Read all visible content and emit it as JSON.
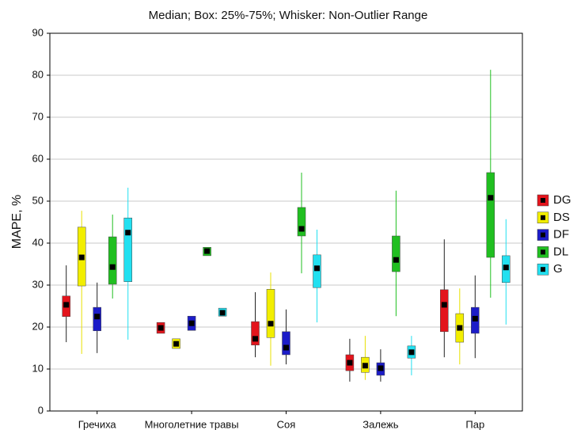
{
  "chart_data": {
    "type": "box",
    "title": "Median; Box: 25%-75%; Whisker: Non-Outlier Range",
    "y_label": "MAPE, %",
    "categories": [
      "Гречиха",
      "Многолетние травы",
      "Соя",
      "Залежь",
      "Пар"
    ],
    "ylim": [
      0,
      90
    ],
    "yticks": [
      0,
      10,
      20,
      30,
      40,
      50,
      60,
      70,
      80,
      90
    ],
    "grid": true,
    "legend": "right",
    "series": [
      {
        "name": "DG",
        "color": "#e3141c",
        "whisker_color": "#222222",
        "min": [
          16.4,
          18.5,
          12.8,
          7,
          12.8
        ],
        "q1": [
          22.5,
          18.5,
          15.7,
          9.6,
          18.9
        ],
        "median": [
          25.3,
          19.8,
          17.2,
          11.5,
          25.3
        ],
        "q3": [
          27.4,
          21.1,
          21.3,
          13.4,
          28.9
        ],
        "max": [
          34.7,
          21.1,
          28.3,
          17.2,
          40.9
        ]
      },
      {
        "name": "DS",
        "color": "#f2ee00",
        "whisker_color": "#e8e000",
        "min": [
          13.6,
          14.9,
          10.8,
          7.4,
          11.1
        ],
        "q1": [
          29.8,
          14.9,
          17.5,
          9.2,
          16.4
        ],
        "median": [
          36.6,
          16,
          20.8,
          10.8,
          19.8
        ],
        "q3": [
          43.8,
          17.2,
          29,
          12.8,
          23.2
        ],
        "max": [
          47.7,
          17.2,
          33,
          17.9,
          29.2
        ]
      },
      {
        "name": "DF",
        "color": "#1c1cc8",
        "whisker_color": "#222222",
        "min": [
          13.8,
          19.2,
          11.1,
          7,
          12.6
        ],
        "q1": [
          19.1,
          19.2,
          13.4,
          8.5,
          18.5
        ],
        "median": [
          22.5,
          20.9,
          15.1,
          10.2,
          22
        ],
        "q3": [
          24.7,
          22.6,
          18.9,
          11.5,
          24.7
        ],
        "max": [
          30.6,
          22.6,
          24.2,
          14.7,
          32.3
        ]
      },
      {
        "name": "DL",
        "color": "#20bf20",
        "whisker_color": "#20bf20",
        "min": [
          26.8,
          37,
          32.8,
          22.6,
          27
        ],
        "q1": [
          30.2,
          37,
          41.7,
          33.2,
          36.6
        ],
        "median": [
          34.3,
          38.1,
          43.4,
          36,
          50.8
        ],
        "q3": [
          41.5,
          39,
          48.5,
          41.7,
          56.8
        ],
        "max": [
          46.8,
          39,
          56.8,
          52.5,
          81.3
        ]
      },
      {
        "name": "G",
        "color": "#22e0f0",
        "whisker_color": "#22e0f0",
        "min": [
          17,
          22.6,
          21.1,
          8.5,
          20.6
        ],
        "q1": [
          30.8,
          22.6,
          29.4,
          12.6,
          30.6
        ],
        "median": [
          42.5,
          23.4,
          34,
          14,
          34.2
        ],
        "q3": [
          46,
          24.5,
          37.2,
          15.5,
          37
        ],
        "max": [
          53.2,
          24.5,
          43.2,
          17.9,
          45.7
        ]
      }
    ]
  }
}
